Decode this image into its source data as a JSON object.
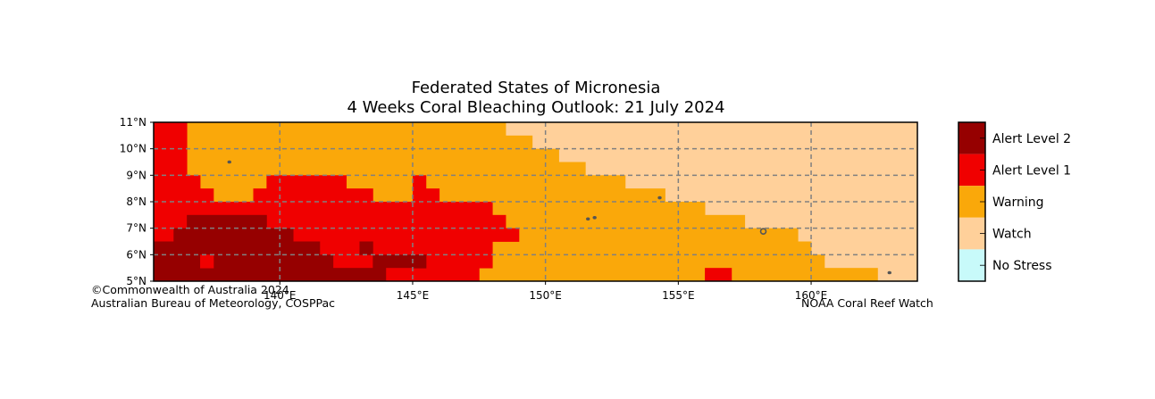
{
  "title": {
    "line1": "Federated States of Micronesia",
    "line2": "4 Weeks Coral Bleaching Outlook: 21 July 2024"
  },
  "colors": {
    "no_stress": "#c8fafa",
    "watch": "#ffd09a",
    "warning": "#faa80a",
    "alert1": "#f00000",
    "alert2": "#960000",
    "grid": "#808080",
    "land": "#555555"
  },
  "axes": {
    "x_ticks": [
      {
        "lon": 140,
        "label": "140°E"
      },
      {
        "lon": 145,
        "label": "145°E"
      },
      {
        "lon": 150,
        "label": "150°E"
      },
      {
        "lon": 155,
        "label": "155°E"
      },
      {
        "lon": 160,
        "label": "160°E"
      }
    ],
    "y_ticks": [
      {
        "lat": 5,
        "label": "5°N"
      },
      {
        "lat": 6,
        "label": "6°N"
      },
      {
        "lat": 7,
        "label": "7°N"
      },
      {
        "lat": 8,
        "label": "8°N"
      },
      {
        "lat": 9,
        "label": "9°N"
      },
      {
        "lat": 10,
        "label": "10°N"
      },
      {
        "lat": 11,
        "label": "11°N"
      }
    ],
    "lon_range": [
      135.25,
      164.0
    ],
    "lat_range": [
      5,
      11
    ]
  },
  "map": {
    "cell_deg": 0.5,
    "regions": [
      {
        "level": "watch",
        "lon": [
          148.5,
          164.0
        ],
        "lat": [
          5.5,
          11.0
        ]
      },
      {
        "level": "watch",
        "lon": [
          162.5,
          164.0
        ],
        "lat": [
          5.0,
          5.5
        ]
      },
      {
        "level": "warning",
        "lon": [
          136.5,
          148.5
        ],
        "lat": [
          5.0,
          11.0
        ]
      },
      {
        "level": "warning",
        "lon": [
          148.5,
          149.5
        ],
        "lat": [
          5.0,
          10.5
        ]
      },
      {
        "level": "warning",
        "lon": [
          149.5,
          150.5
        ],
        "lat": [
          5.0,
          10.0
        ]
      },
      {
        "level": "warning",
        "lon": [
          150.5,
          151.5
        ],
        "lat": [
          5.0,
          9.5
        ]
      },
      {
        "level": "warning",
        "lon": [
          151.5,
          153.0
        ],
        "lat": [
          5.0,
          9.0
        ]
      },
      {
        "level": "warning",
        "lon": [
          153.0,
          154.5
        ],
        "lat": [
          5.0,
          8.5
        ]
      },
      {
        "level": "warning",
        "lon": [
          154.5,
          156.0
        ],
        "lat": [
          5.0,
          8.0
        ]
      },
      {
        "level": "warning",
        "lon": [
          156.0,
          157.5
        ],
        "lat": [
          5.0,
          7.5
        ]
      },
      {
        "level": "warning",
        "lon": [
          157.5,
          159.5
        ],
        "lat": [
          5.0,
          7.0
        ]
      },
      {
        "level": "warning",
        "lon": [
          159.5,
          160.0
        ],
        "lat": [
          5.0,
          6.5
        ]
      },
      {
        "level": "warning",
        "lon": [
          160.0,
          160.5
        ],
        "lat": [
          5.0,
          6.0
        ]
      },
      {
        "level": "warning",
        "lon": [
          160.5,
          162.5
        ],
        "lat": [
          5.0,
          5.5
        ]
      },
      {
        "level": "alert1",
        "lon": [
          135.25,
          136.5
        ],
        "lat": [
          5.0,
          11.0
        ]
      },
      {
        "level": "alert1",
        "lon": [
          136.5,
          137.0
        ],
        "lat": [
          5.0,
          9.0
        ]
      },
      {
        "level": "alert1",
        "lon": [
          137.0,
          137.5
        ],
        "lat": [
          5.0,
          8.5
        ]
      },
      {
        "level": "alert1",
        "lon": [
          137.5,
          139.0
        ],
        "lat": [
          5.0,
          8.0
        ]
      },
      {
        "level": "alert1",
        "lon": [
          139.0,
          139.5
        ],
        "lat": [
          5.0,
          8.5
        ]
      },
      {
        "level": "alert1",
        "lon": [
          139.5,
          142.5
        ],
        "lat": [
          5.0,
          9.0
        ]
      },
      {
        "level": "alert1",
        "lon": [
          142.5,
          143.5
        ],
        "lat": [
          5.0,
          8.5
        ]
      },
      {
        "level": "alert1",
        "lon": [
          143.5,
          145.0
        ],
        "lat": [
          5.0,
          8.0
        ]
      },
      {
        "level": "alert1",
        "lon": [
          145.0,
          145.5
        ],
        "lat": [
          5.0,
          9.0
        ]
      },
      {
        "level": "alert1",
        "lon": [
          145.5,
          146.0
        ],
        "lat": [
          5.0,
          8.5
        ]
      },
      {
        "level": "alert1",
        "lon": [
          146.0,
          147.5
        ],
        "lat": [
          5.0,
          8.0
        ]
      },
      {
        "level": "alert1",
        "lon": [
          147.5,
          148.0
        ],
        "lat": [
          5.5,
          8.0
        ]
      },
      {
        "level": "alert1",
        "lon": [
          148.0,
          148.5
        ],
        "lat": [
          6.5,
          7.5
        ]
      },
      {
        "level": "alert1",
        "lon": [
          148.5,
          149.0
        ],
        "lat": [
          6.5,
          7.0
        ]
      },
      {
        "level": "alert1",
        "lon": [
          156.0,
          157.0
        ],
        "lat": [
          5.0,
          5.5
        ]
      },
      {
        "level": "alert2",
        "lon": [
          135.25,
          136.0
        ],
        "lat": [
          5.0,
          6.5
        ]
      },
      {
        "level": "alert2",
        "lon": [
          136.0,
          136.5
        ],
        "lat": [
          5.0,
          7.0
        ]
      },
      {
        "level": "alert2",
        "lon": [
          136.5,
          139.5
        ],
        "lat": [
          5.0,
          7.5
        ]
      },
      {
        "level": "alert2",
        "lon": [
          139.5,
          140.5
        ],
        "lat": [
          5.0,
          7.0
        ]
      },
      {
        "level": "alert2",
        "lon": [
          140.5,
          141.5
        ],
        "lat": [
          5.0,
          6.5
        ]
      },
      {
        "level": "alert2",
        "lon": [
          141.5,
          142.0
        ],
        "lat": [
          5.0,
          6.0
        ]
      },
      {
        "level": "alert2",
        "lon": [
          142.0,
          143.5
        ],
        "lat": [
          5.0,
          5.5
        ]
      },
      {
        "level": "alert2",
        "lon": [
          143.5,
          144.0
        ],
        "lat": [
          5.0,
          6.0
        ]
      },
      {
        "level": "alert2",
        "lon": [
          144.0,
          145.5
        ],
        "lat": [
          5.5,
          6.0
        ]
      },
      {
        "level": "alert2",
        "lon": [
          145.0,
          145.5
        ],
        "lat": [
          5.5,
          6.0
        ]
      },
      {
        "level": "alert2",
        "lon": [
          143.0,
          143.5
        ],
        "lat": [
          6.0,
          6.5
        ]
      },
      {
        "level": "alert1",
        "lon": [
          137.0,
          137.5
        ],
        "lat": [
          5.5,
          6.0
        ]
      },
      {
        "level": "alert1",
        "lon": [
          144.0,
          145.0
        ],
        "lat": [
          5.0,
          5.5
        ]
      }
    ],
    "islands": [
      {
        "lon": 138.1,
        "lat": 9.5,
        "name": "yap-island"
      },
      {
        "lon": 151.6,
        "lat": 7.35,
        "name": "chuuk-island"
      },
      {
        "lon": 151.85,
        "lat": 7.4,
        "name": "chuuk-island-east"
      },
      {
        "lon": 154.3,
        "lat": 8.15,
        "name": "atoll-island"
      },
      {
        "lon": 158.2,
        "lat": 6.88,
        "name": "pohnpei-island"
      },
      {
        "lon": 162.95,
        "lat": 5.32,
        "name": "kosrae-island"
      }
    ]
  },
  "legend": [
    {
      "level": "alert2",
      "label": "Alert Level 2"
    },
    {
      "level": "alert1",
      "label": "Alert Level 1"
    },
    {
      "level": "warning",
      "label": "Warning"
    },
    {
      "level": "watch",
      "label": "Watch"
    },
    {
      "level": "no_stress",
      "label": "No Stress"
    }
  ],
  "credits": {
    "left_line1": "©Commonwealth of Australia 2024",
    "left_line2": "Australian Bureau of Meteorology, COSPPac",
    "right": "NOAA Coral Reef Watch"
  }
}
